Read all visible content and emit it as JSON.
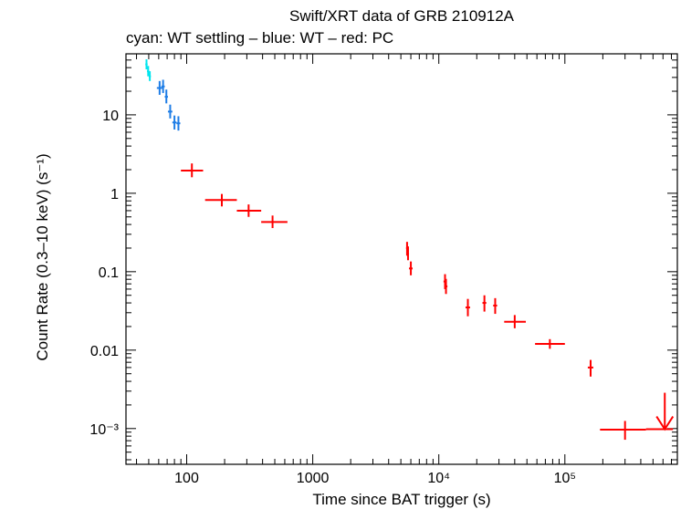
{
  "chart_data": {
    "type": "scatter",
    "title": "Swift/XRT data of GRB 210912A",
    "subtitle": "cyan: WT settling – blue: WT – red: PC",
    "xlabel": "Time since BAT trigger (s)",
    "ylabel": "Count Rate (0.3–10 keV) (s⁻¹)",
    "x_scale": "log",
    "y_scale": "log",
    "xlim": [
      33,
      780000
    ],
    "ylim": [
      0.00035,
      60
    ],
    "grid": false,
    "legend": "none",
    "x_ticks": [
      {
        "value": 100,
        "label": "100"
      },
      {
        "value": 1000,
        "label": "1000"
      },
      {
        "value": 10000,
        "label": "10⁴"
      },
      {
        "value": 100000,
        "label": "10⁵"
      }
    ],
    "y_ticks": [
      {
        "value": 10,
        "label": "10"
      },
      {
        "value": 1,
        "label": "1"
      },
      {
        "value": 0.1,
        "label": "0.1"
      },
      {
        "value": 0.01,
        "label": "0.01"
      },
      {
        "value": 0.001,
        "label": "10⁻³"
      }
    ],
    "series": [
      {
        "color": "#00e5ee",
        "points": [
          {
            "x": 48,
            "xlo": 47,
            "xhi": 49,
            "y": 44,
            "ylo": 38,
            "yhi": 51
          },
          {
            "x": 49.5,
            "xlo": 48.5,
            "xhi": 50.5,
            "y": 36,
            "ylo": 31,
            "yhi": 42
          },
          {
            "x": 51,
            "xlo": 50,
            "xhi": 52,
            "y": 31,
            "ylo": 27,
            "yhi": 36
          }
        ]
      },
      {
        "color": "#1e7de6",
        "points": [
          {
            "x": 61,
            "xlo": 58,
            "xhi": 64,
            "y": 22,
            "ylo": 18,
            "yhi": 27
          },
          {
            "x": 65,
            "xlo": 63,
            "xhi": 67,
            "y": 23,
            "ylo": 19,
            "yhi": 28
          },
          {
            "x": 69,
            "xlo": 67,
            "xhi": 71,
            "y": 17,
            "ylo": 14,
            "yhi": 21
          },
          {
            "x": 74,
            "xlo": 71,
            "xhi": 77,
            "y": 11,
            "ylo": 9,
            "yhi": 13.5
          },
          {
            "x": 80,
            "xlo": 77,
            "xhi": 83,
            "y": 8,
            "ylo": 6.5,
            "yhi": 9.8
          },
          {
            "x": 86,
            "xlo": 83,
            "xhi": 89,
            "y": 7.8,
            "ylo": 6.3,
            "yhi": 9.6
          }
        ]
      },
      {
        "color": "#ff0000",
        "points": [
          {
            "x": 110,
            "xlo": 90,
            "xhi": 135,
            "y": 1.95,
            "ylo": 1.6,
            "yhi": 2.4
          },
          {
            "x": 190,
            "xlo": 140,
            "xhi": 250,
            "y": 0.82,
            "ylo": 0.68,
            "yhi": 0.98
          },
          {
            "x": 310,
            "xlo": 250,
            "xhi": 390,
            "y": 0.6,
            "ylo": 0.5,
            "yhi": 0.72
          },
          {
            "x": 480,
            "xlo": 390,
            "xhi": 630,
            "y": 0.43,
            "ylo": 0.36,
            "yhi": 0.52
          },
          {
            "x": 5600,
            "xlo": 5500,
            "xhi": 5700,
            "y": 0.2,
            "ylo": 0.16,
            "yhi": 0.24
          },
          {
            "x": 5700,
            "xlo": 5600,
            "xhi": 5800,
            "y": 0.17,
            "ylo": 0.14,
            "yhi": 0.21
          },
          {
            "x": 6000,
            "xlo": 5800,
            "xhi": 6200,
            "y": 0.11,
            "ylo": 0.09,
            "yhi": 0.135
          },
          {
            "x": 11200,
            "xlo": 10900,
            "xhi": 11500,
            "y": 0.075,
            "ylo": 0.06,
            "yhi": 0.093
          },
          {
            "x": 11400,
            "xlo": 11100,
            "xhi": 11700,
            "y": 0.065,
            "ylo": 0.052,
            "yhi": 0.081
          },
          {
            "x": 17000,
            "xlo": 16300,
            "xhi": 17700,
            "y": 0.035,
            "ylo": 0.027,
            "yhi": 0.045
          },
          {
            "x": 23000,
            "xlo": 22200,
            "xhi": 23800,
            "y": 0.04,
            "ylo": 0.031,
            "yhi": 0.05
          },
          {
            "x": 28000,
            "xlo": 27000,
            "xhi": 29000,
            "y": 0.037,
            "ylo": 0.029,
            "yhi": 0.046
          },
          {
            "x": 40000,
            "xlo": 33000,
            "xhi": 49000,
            "y": 0.023,
            "ylo": 0.019,
            "yhi": 0.028
          },
          {
            "x": 76000,
            "xlo": 58000,
            "xhi": 100000,
            "y": 0.012,
            "ylo": 0.0104,
            "yhi": 0.0138
          },
          {
            "x": 160000,
            "xlo": 152000,
            "xhi": 168000,
            "y": 0.006,
            "ylo": 0.0046,
            "yhi": 0.0075
          },
          {
            "x": 300000,
            "xlo": 190000,
            "xhi": 440000,
            "y": 0.00097,
            "ylo": 0.00072,
            "yhi": 0.00125
          }
        ],
        "upper_limits": [
          {
            "x": 620000,
            "xlo": 440000,
            "xhi": 720000,
            "y": 0.00098
          }
        ]
      }
    ]
  }
}
